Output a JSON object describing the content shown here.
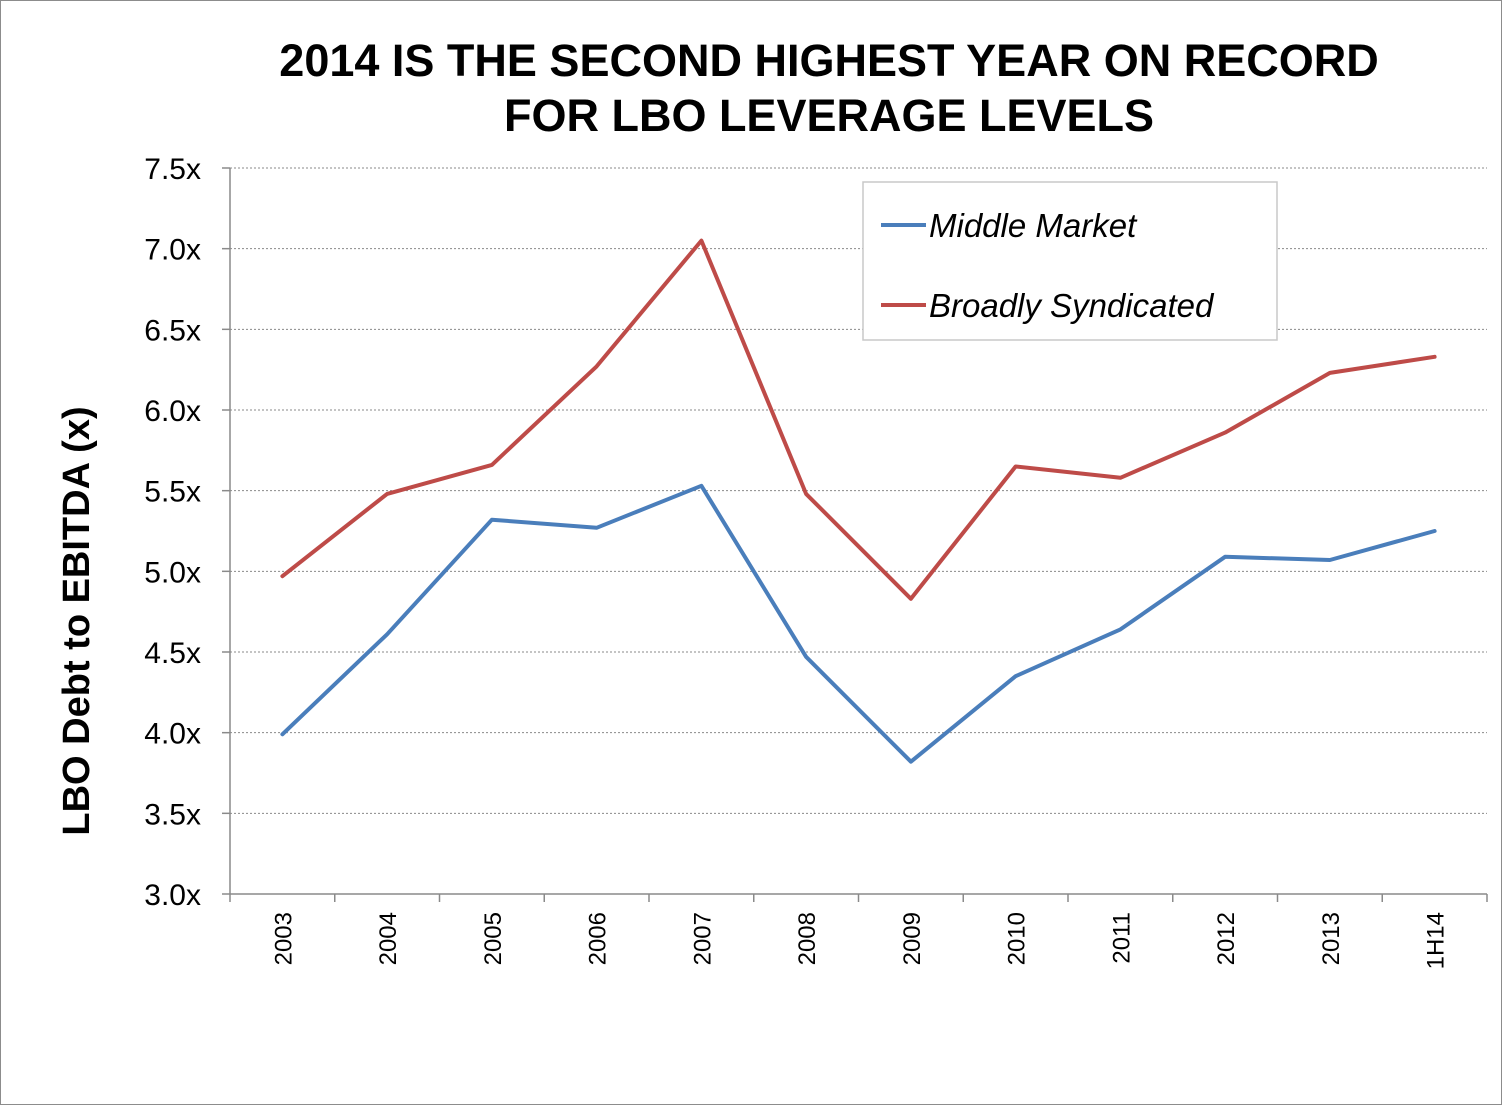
{
  "chart_data": {
    "type": "line",
    "title": [
      "2014 IS THE SECOND HIGHEST YEAR ON RECORD",
      "FOR LBO LEVERAGE LEVELS"
    ],
    "xlabel": "",
    "ylabel": "LBO  Debt to EBITDA (x)",
    "categories": [
      "2003",
      "2004",
      "2005",
      "2006",
      "2007",
      "2008",
      "2009",
      "2010",
      "2011",
      "2012",
      "2013",
      "1H14"
    ],
    "yticks": [
      "3.0x",
      "3.5x",
      "4.0x",
      "4.5x",
      "5.0x",
      "5.5x",
      "6.0x",
      "6.5x",
      "7.0x",
      "7.5x"
    ],
    "ylim": [
      3.0,
      7.5
    ],
    "grid": true,
    "legend_position": "top-right",
    "series": [
      {
        "name": "Middle Market",
        "color": "#4a7ebb",
        "values": [
          3.99,
          4.61,
          5.32,
          5.27,
          5.53,
          4.47,
          3.82,
          4.35,
          4.64,
          5.09,
          5.07,
          5.25
        ]
      },
      {
        "name": "Broadly Syndicated",
        "color": "#be4b48",
        "values": [
          4.97,
          5.48,
          5.66,
          6.27,
          7.05,
          5.48,
          4.83,
          5.65,
          5.58,
          5.86,
          6.23,
          6.33
        ]
      }
    ]
  }
}
